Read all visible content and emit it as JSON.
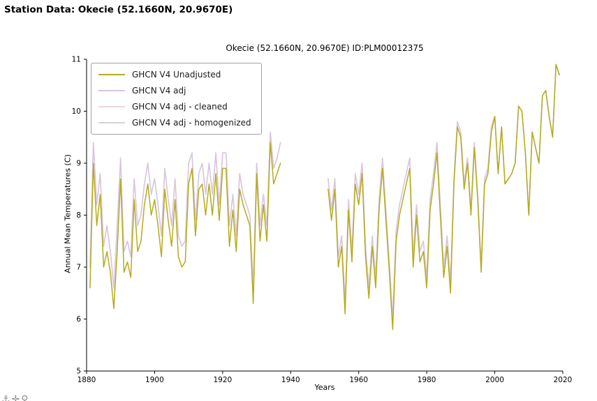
{
  "page": {
    "header": "Station Data: Okecie (52.1660N, 20.9670E)",
    "watermark_glyphs": "⚓✛♀",
    "watermark_icon_names": [
      "anchor-icon",
      "cross-icon",
      "female-icon"
    ]
  },
  "chart_data": {
    "type": "line",
    "title": "Okecie (52.1660N, 20.9670E) ID:PLM00012375",
    "xlabel": "Years",
    "ylabel": "Annual Mean Temperatures (C)",
    "xlim": [
      1880,
      2020
    ],
    "ylim": [
      5,
      11
    ],
    "x_ticks": [
      1880,
      1900,
      1920,
      1940,
      1960,
      1980,
      2000,
      2020
    ],
    "y_ticks": [
      5,
      6,
      7,
      8,
      9,
      10,
      11
    ],
    "grid": false,
    "legend_position": "upper left",
    "axis_color": "#000000",
    "series": [
      {
        "name": "GHCN V4 Unadjusted",
        "color": "#b5ab1e",
        "segments": [
          {
            "start_year": 1881,
            "values": [
              6.6,
              9.0,
              7.8,
              8.4,
              7.0,
              7.3,
              6.9,
              6.2,
              7.3,
              8.7,
              6.9,
              7.1,
              6.8,
              8.3,
              7.3,
              7.5,
              8.2,
              8.6,
              8.0,
              8.3,
              7.8,
              7.2,
              8.5,
              7.9,
              7.4,
              8.3,
              7.2,
              7.0,
              7.1,
              8.6,
              8.9,
              7.6,
              8.5,
              8.6,
              8.0,
              8.6,
              8.0,
              8.8,
              7.9,
              8.9,
              8.9,
              7.4,
              8.1,
              7.3,
              8.5,
              8.2,
              8.0,
              7.8,
              6.3,
              8.8,
              7.5,
              8.2,
              7.5,
              9.4,
              8.6,
              8.8,
              9.0
            ]
          },
          {
            "start_year": 1951,
            "values": [
              8.5,
              7.9,
              8.5,
              7.0,
              7.4,
              6.1,
              8.1,
              7.1,
              8.6,
              8.2,
              8.8,
              7.2,
              6.4,
              7.4,
              6.6,
              8.1,
              8.9,
              7.9,
              6.9,
              5.8,
              7.5,
              8.0,
              8.3,
              8.6,
              8.9,
              7.0,
              8.0,
              7.1,
              7.3,
              6.6,
              8.1,
              8.6,
              9.2,
              8.0,
              6.8,
              7.4,
              6.5,
              8.6,
              9.7,
              9.5,
              8.5,
              9.0,
              8.0,
              9.3,
              8.3,
              6.9,
              8.6,
              8.8,
              9.6,
              9.9,
              8.8,
              9.7,
              8.6,
              8.7,
              8.8,
              9.0,
              10.1,
              10.0,
              9.2,
              8.0,
              9.6,
              9.3,
              9.0,
              10.3,
              10.4,
              9.9,
              9.5,
              10.9,
              10.7
            ]
          }
        ]
      },
      {
        "name": "GHCN V4 adj",
        "color": "#d9c6df",
        "segments": [
          {
            "start_year": 1881,
            "values": [
              7.0,
              9.4,
              8.2,
              8.8,
              7.4,
              7.8,
              7.3,
              6.6,
              7.8,
              9.1,
              7.3,
              7.5,
              7.2,
              8.7,
              7.8,
              8.0,
              8.6,
              9.0,
              8.4,
              8.7,
              8.2,
              7.6,
              8.9,
              8.3,
              7.8,
              8.7,
              7.6,
              7.4,
              7.5,
              9.0,
              9.2,
              7.9,
              8.8,
              9.0,
              8.4,
              9.0,
              8.4,
              9.2,
              8.2,
              9.2,
              9.2,
              7.8,
              8.4,
              7.6,
              8.8,
              8.4,
              8.2,
              8.0,
              6.6,
              9.0,
              7.8,
              8.4,
              7.8,
              9.6,
              8.9,
              9.1,
              9.4
            ]
          },
          {
            "start_year": 1951,
            "values": [
              8.7,
              8.1,
              8.7,
              7.2,
              7.6,
              6.3,
              8.3,
              7.3,
              8.8,
              8.4,
              9.0,
              7.4,
              6.6,
              7.6,
              6.8,
              8.3,
              9.1,
              8.1,
              7.1,
              6.0,
              7.7,
              8.2,
              8.5,
              8.8,
              9.1,
              7.2,
              8.2,
              7.3,
              7.5,
              6.8,
              8.3,
              8.8,
              9.4,
              8.2,
              7.0,
              7.6,
              6.7,
              8.7,
              9.8,
              9.6,
              8.6,
              9.1,
              8.1,
              9.4,
              8.4,
              7.0,
              8.7,
              8.9,
              9.7,
              9.9,
              8.8,
              9.7,
              8.6,
              8.7,
              8.8,
              9.0,
              10.1,
              10.0,
              9.2,
              8.0,
              9.6,
              9.3,
              9.0,
              10.3,
              10.4,
              9.9,
              9.5,
              10.9,
              10.7
            ]
          }
        ]
      },
      {
        "name": "GHCN V4 adj - cleaned",
        "color": "#ecd6e4",
        "same_as": "GHCN V4 adj"
      },
      {
        "name": "GHCN V4 adj - homogenized",
        "color": "#d4d1dd",
        "same_as": "GHCN V4 adj"
      }
    ]
  }
}
